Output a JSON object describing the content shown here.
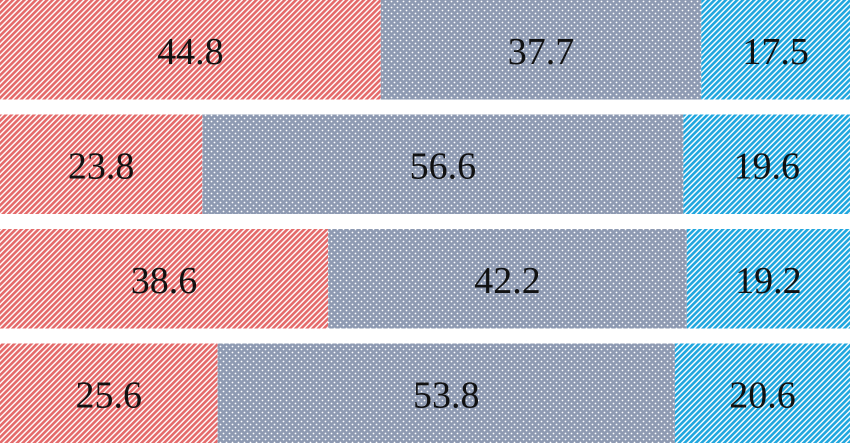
{
  "chart_data": {
    "type": "stacked-bar-horizontal",
    "categories": [
      null,
      null,
      null,
      null
    ],
    "xlim": [
      0,
      100
    ],
    "series": [
      {
        "color": "#e46a6a",
        "pattern": "stripes",
        "values": [
          44.8,
          23.8,
          38.6,
          25.6
        ]
      },
      {
        "color": "#8e9ab2",
        "pattern": "dots",
        "values": [
          37.7,
          56.6,
          42.2,
          53.8
        ]
      },
      {
        "color": "#1fa6de",
        "pattern": "stripes",
        "values": [
          17.5,
          19.6,
          19.2,
          20.6
        ]
      }
    ]
  }
}
